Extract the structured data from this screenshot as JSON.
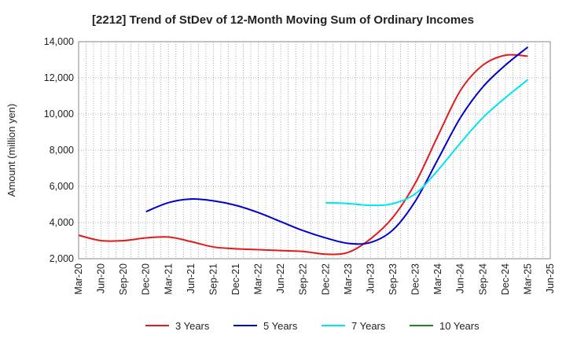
{
  "chart_data": {
    "type": "line",
    "title": "[2212]  Trend of StDev of 12-Month Moving Sum of Ordinary Incomes",
    "xlabel": "",
    "ylabel": "Amount (million yen)",
    "ylim": [
      2000,
      14000
    ],
    "yticks": [
      2000,
      4000,
      6000,
      8000,
      10000,
      12000,
      14000
    ],
    "ytick_labels": [
      "2,000",
      "4,000",
      "6,000",
      "8,000",
      "10,000",
      "12,000",
      "14,000"
    ],
    "xtick_labels": [
      "Mar-20",
      "Jun-20",
      "Sep-20",
      "Dec-20",
      "Mar-21",
      "Jun-21",
      "Sep-21",
      "Dec-21",
      "Mar-22",
      "Jun-22",
      "Sep-22",
      "Dec-22",
      "Mar-23",
      "Jun-23",
      "Sep-23",
      "Dec-23",
      "Mar-24",
      "Jun-24",
      "Sep-24",
      "Dec-24",
      "Mar-25",
      "Jun-25"
    ],
    "grid": true,
    "legend_position": "bottom",
    "series": [
      {
        "name": "3 Years",
        "color": "#e31a1c",
        "x": [
          "Mar-20",
          "Jun-20",
          "Sep-20",
          "Dec-20",
          "Mar-21",
          "Jun-21",
          "Sep-21",
          "Dec-21",
          "Mar-22",
          "Jun-22",
          "Sep-22",
          "Dec-22",
          "Mar-23",
          "Jun-23",
          "Sep-23",
          "Dec-23",
          "Mar-24",
          "Jun-24",
          "Sep-24",
          "Dec-24",
          "Mar-25"
        ],
        "values": [
          3300,
          3000,
          3000,
          3150,
          3200,
          2950,
          2650,
          2550,
          2500,
          2450,
          2400,
          2250,
          2350,
          3100,
          4300,
          6200,
          8800,
          11300,
          12700,
          13250,
          13200
        ]
      },
      {
        "name": "5 Years",
        "color": "#0000cc",
        "x": [
          "Dec-20",
          "Mar-21",
          "Jun-21",
          "Sep-21",
          "Dec-21",
          "Mar-22",
          "Jun-22",
          "Sep-22",
          "Dec-22",
          "Mar-23",
          "Jun-23",
          "Sep-23",
          "Dec-23",
          "Mar-24",
          "Jun-24",
          "Sep-24",
          "Dec-24",
          "Mar-25"
        ],
        "values": [
          4600,
          5100,
          5300,
          5200,
          4950,
          4550,
          4050,
          3550,
          3150,
          2850,
          2900,
          3600,
          5200,
          7500,
          9800,
          11500,
          12700,
          13700
        ]
      },
      {
        "name": "7 Years",
        "color": "#00e5ee",
        "x": [
          "Dec-22",
          "Mar-23",
          "Jun-23",
          "Sep-23",
          "Dec-23",
          "Mar-24",
          "Jun-24",
          "Sep-24",
          "Dec-24",
          "Mar-25"
        ],
        "values": [
          5100,
          5050,
          4950,
          5050,
          5600,
          6900,
          8400,
          9800,
          10900,
          11900
        ]
      },
      {
        "name": "10 Years",
        "color": "#1a8a1a",
        "x": [],
        "values": []
      }
    ]
  }
}
